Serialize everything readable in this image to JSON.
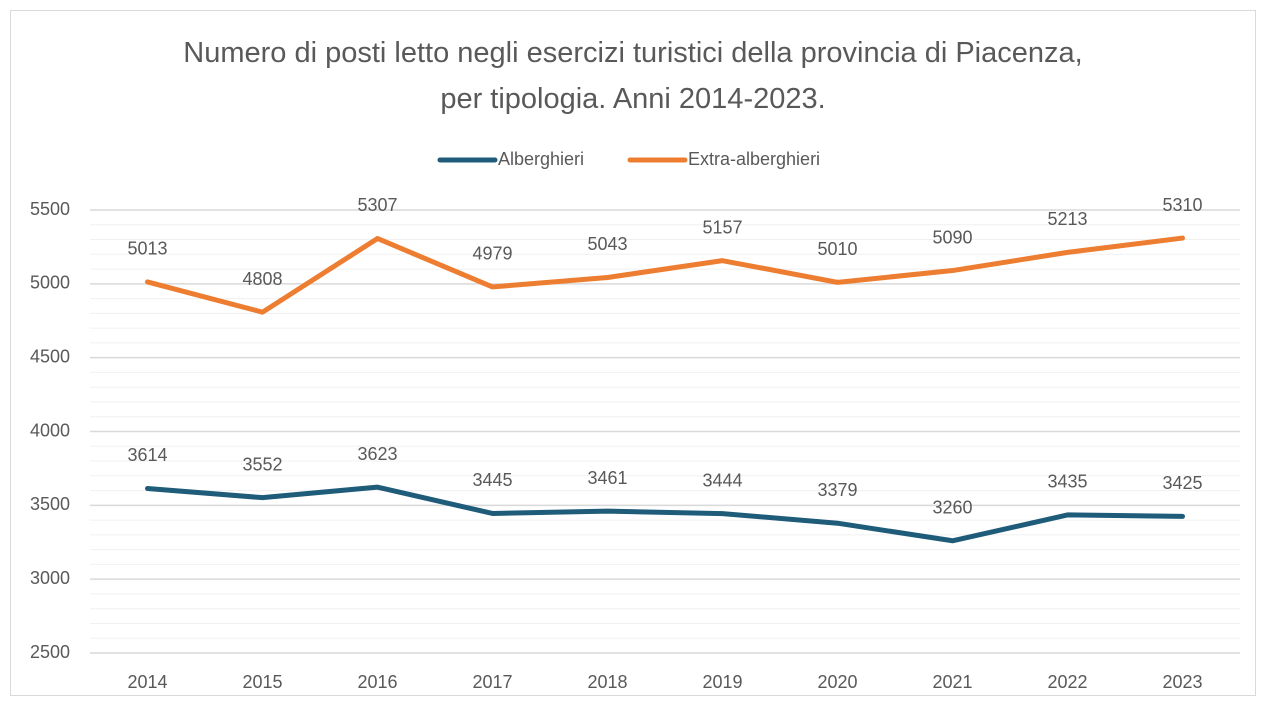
{
  "chart_data": {
    "type": "line",
    "title": "Numero di posti letto negli esercizi turistici della provincia di Piacenza, per tipologia. Anni 2014-2023.",
    "categories": [
      "2014",
      "2015",
      "2016",
      "2017",
      "2018",
      "2019",
      "2020",
      "2021",
      "2022",
      "2023"
    ],
    "series": [
      {
        "name": "Alberghieri",
        "color": "#1f5c7a",
        "values": [
          3614,
          3552,
          3623,
          3445,
          3461,
          3444,
          3379,
          3260,
          3435,
          3425
        ]
      },
      {
        "name": "Extra-alberghieri",
        "color": "#ed7d31",
        "values": [
          5013,
          4808,
          5307,
          4979,
          5043,
          5157,
          5010,
          5090,
          5213,
          5310
        ]
      }
    ],
    "ylim": [
      2500,
      5500
    ],
    "yticks": [
      2500,
      3000,
      3500,
      4000,
      4500,
      5000,
      5500
    ],
    "yminor_ticks": [
      2600,
      2700,
      2800,
      2900,
      3100,
      3200,
      3300,
      3400,
      3600,
      3700,
      3800,
      3900,
      4100,
      4200,
      4300,
      4400,
      4600,
      4700,
      4800,
      4900,
      5100,
      5200,
      5300,
      5400
    ],
    "grid": true,
    "legend": "top",
    "data_labels": true
  }
}
